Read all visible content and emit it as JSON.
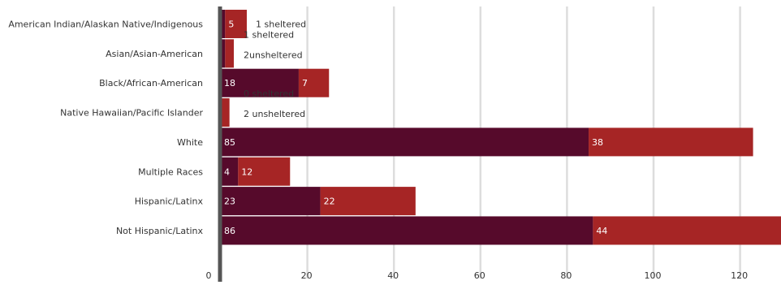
{
  "chart_data": {
    "type": "bar",
    "orientation": "horizontal",
    "stacked": true,
    "categories": [
      "American Indian/Alaskan Native/Indigenous",
      "Asian/Asian-American",
      "Black/African-American",
      "Native Hawaiian/Pacific Islander",
      "White",
      "Multiple Races",
      "Hispanic/Latinx",
      "Not Hispanic/Latinx"
    ],
    "series": [
      {
        "color": "#560a2b",
        "values": [
          1,
          1,
          18,
          0,
          85,
          4,
          23,
          86
        ],
        "labels": [
          "",
          "",
          "18",
          "",
          "85",
          "4",
          "23",
          "86"
        ]
      },
      {
        "color": "#a62525",
        "values": [
          5,
          2,
          7,
          2,
          38,
          12,
          22,
          44
        ],
        "labels": [
          "5",
          "",
          "7",
          "",
          "38",
          "12",
          "22",
          "44"
        ]
      }
    ],
    "annotations": [
      {
        "category_index": 0,
        "lines": [
          "1 sheltered"
        ]
      },
      {
        "category_index": 1,
        "lines": [
          "1 sheltered",
          "2unsheltered"
        ]
      },
      {
        "category_index": 3,
        "lines": [
          "0 sheltered",
          "2 unsheltered"
        ]
      }
    ],
    "x_ticks": [
      0,
      20,
      40,
      60,
      80,
      100,
      120
    ],
    "xlim": [
      0,
      130
    ],
    "grid": true,
    "colors": {
      "axis": "#555555",
      "grid": "#dddddd",
      "label_text": "#333333",
      "annotation_text": "#333333",
      "bar_label_text": "#ffffff"
    }
  }
}
